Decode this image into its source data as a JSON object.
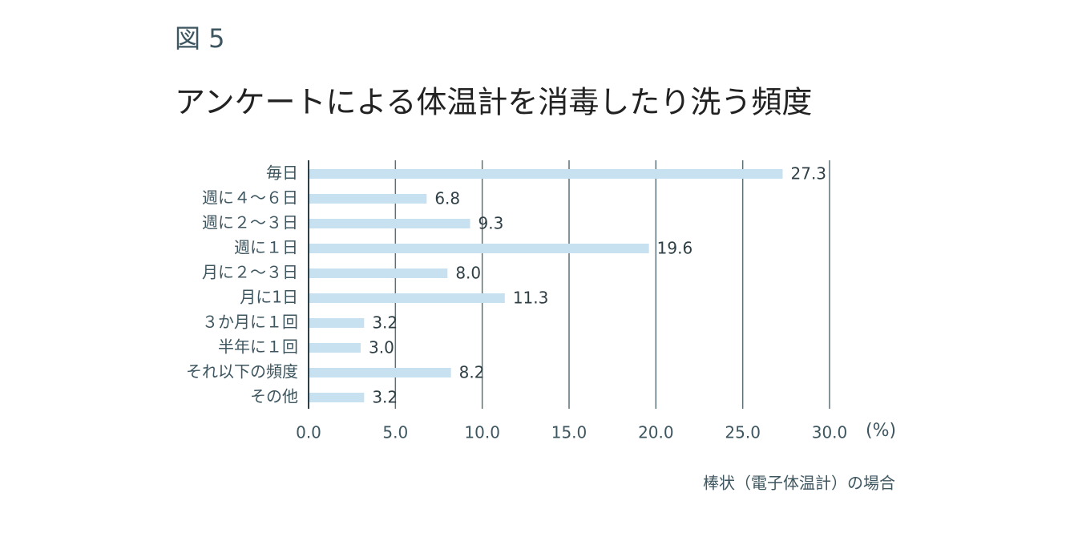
{
  "figure_label": "図 5",
  "chart_data": {
    "type": "hbar",
    "title": "アンケートによる体温計を消毒したり洗う頻度",
    "categories": [
      "毎日",
      "週に４～６日",
      "週に２～３日",
      "週に１日",
      "月に２～３日",
      "月に1日",
      "３か月に１回",
      "半年に１回",
      "それ以下の頻度",
      "その他"
    ],
    "values": [
      27.3,
      6.8,
      9.3,
      19.6,
      8.0,
      11.3,
      3.2,
      3.0,
      8.2,
      3.2
    ],
    "value_labels": [
      "27.3",
      "6.8",
      "9.3",
      "19.6",
      "8.0",
      "11.3",
      "3.2",
      "3.0",
      "8.2",
      "3.2"
    ],
    "color": "#c8e1f0",
    "xlim": [
      0,
      30
    ],
    "xticks": [
      {
        "value": 0,
        "label": "0.0"
      },
      {
        "value": 5,
        "label": "5.0"
      },
      {
        "value": 10,
        "label": "10.0"
      },
      {
        "value": 15,
        "label": "15.0"
      },
      {
        "value": 20,
        "label": "20.0"
      },
      {
        "value": 25,
        "label": "25.0"
      },
      {
        "value": 30,
        "label": "30.0"
      }
    ],
    "x_unit": "(%)",
    "grid": true,
    "note": "棒状（電子体温計）の場合"
  }
}
